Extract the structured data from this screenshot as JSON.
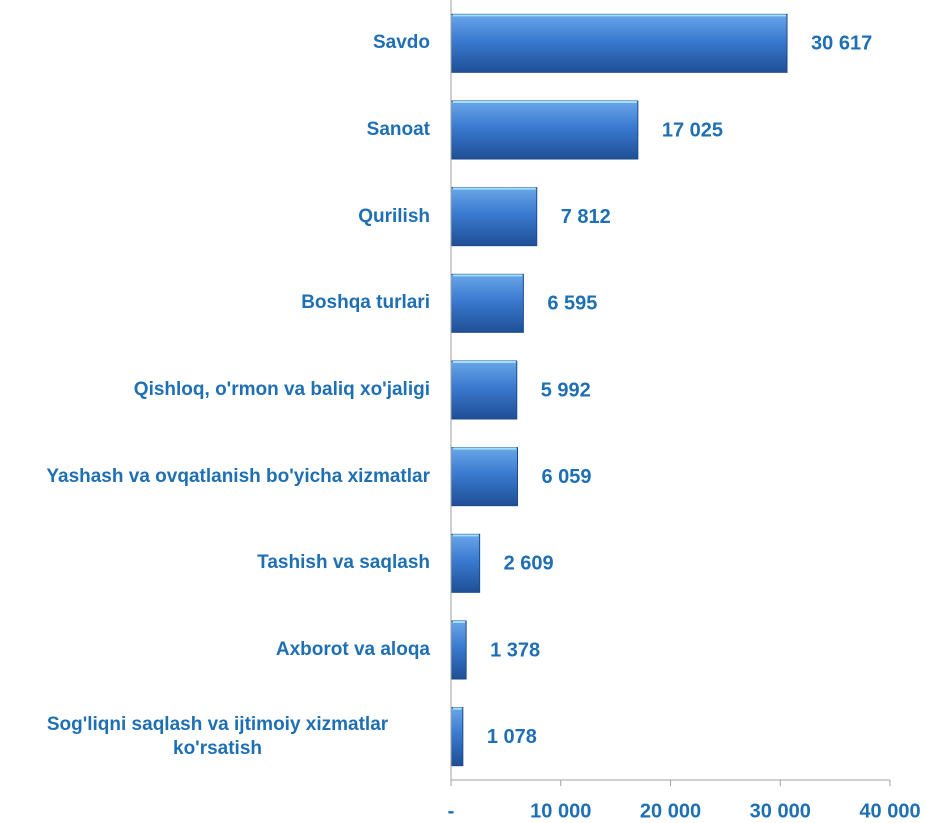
{
  "chart_data": {
    "type": "bar",
    "orientation": "horizontal",
    "categories": [
      "Savdo",
      "Sanoat",
      "Qurilish",
      "Boshqa turlari",
      "Qishloq, o'rmon va baliq xo'jaligi",
      "Yashash va ovqatlanish bo'yicha xizmatlar",
      "Tashish va saqlash",
      "Axborot va aloqa",
      "Sog'liqni saqlash va ijtimoiy xizmatlar ko'rsatish"
    ],
    "values": [
      30617,
      17025,
      7812,
      6595,
      5992,
      6059,
      2609,
      1378,
      1078
    ],
    "value_labels": [
      "30 617",
      "17 025",
      "7 812",
      "6 595",
      "5 992",
      "6 059",
      "2 609",
      "1 378",
      "1 078"
    ],
    "color": "#2f6cc0",
    "xlim": [
      0,
      40000
    ],
    "xticks": [
      {
        "value": 0,
        "label": "-"
      },
      {
        "value": 10000,
        "label": "10 000"
      },
      {
        "value": 20000,
        "label": "20 000"
      },
      {
        "value": 30000,
        "label": "30 000"
      },
      {
        "value": 40000,
        "label": "40 000"
      }
    ]
  }
}
